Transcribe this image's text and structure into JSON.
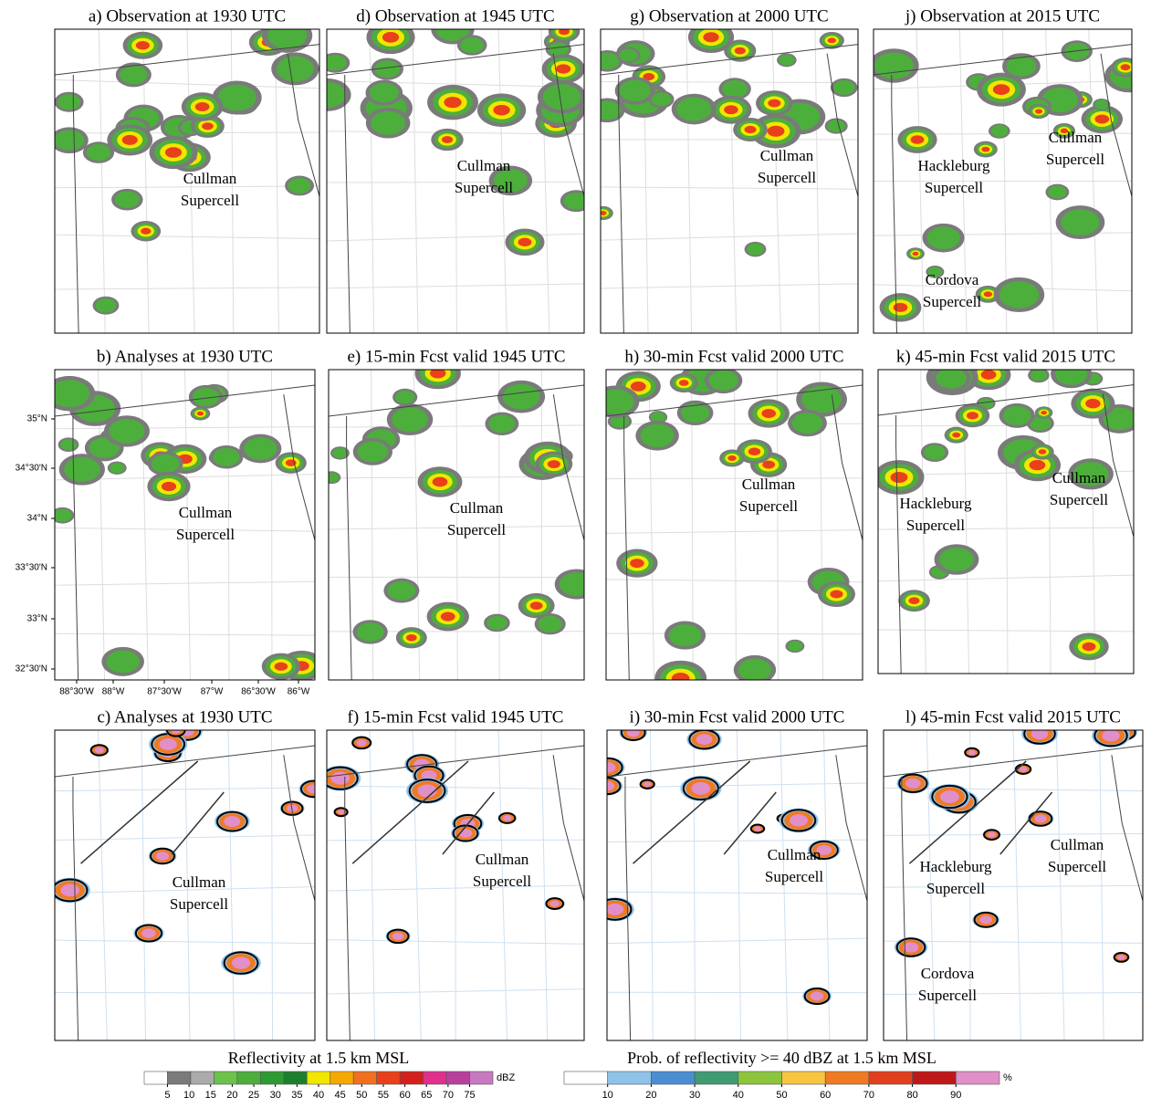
{
  "panels": [
    {
      "title": "a) Observation at 1930 UTC",
      "labels": [
        [
          "Cullman",
          "Supercell"
        ]
      ]
    },
    {
      "title": "d) Observation at 1945 UTC",
      "labels": [
        [
          "Cullman",
          "Supercell"
        ]
      ]
    },
    {
      "title": "g) Observation at 2000 UTC",
      "labels": [
        [
          "Cullman",
          "Supercell"
        ]
      ]
    },
    {
      "title": "j) Observation at 2015 UTC",
      "labels": [
        [
          "Cullman",
          "Supercell"
        ],
        [
          "Hackleburg",
          "Supercell"
        ],
        [
          "Cordova",
          "Supercell"
        ]
      ]
    },
    {
      "title": "b) Analyses at 1930 UTC",
      "labels": [
        [
          "Cullman",
          "Supercell"
        ]
      ]
    },
    {
      "title": "e) 15-min Fcst valid 1945 UTC",
      "labels": [
        [
          "Cullman",
          "Supercell"
        ]
      ]
    },
    {
      "title": "h) 30-min Fcst valid 2000 UTC",
      "labels": [
        [
          "Cullman",
          "Supercell"
        ]
      ]
    },
    {
      "title": "k) 45-min Fcst valid 2015 UTC",
      "labels": [
        [
          "Cullman",
          "Supercell"
        ],
        [
          "Hackleburg",
          "Supercell"
        ]
      ]
    },
    {
      "title": "c) Analyses at 1930 UTC",
      "labels": [
        [
          "Cullman",
          "Supercell"
        ]
      ]
    },
    {
      "title": "f) 15-min Fcst valid 1945 UTC",
      "labels": [
        [
          "Cullman",
          "Supercell"
        ]
      ]
    },
    {
      "title": "i) 30-min Fcst valid 2000 UTC",
      "labels": [
        [
          "Cullman",
          "Supercell"
        ]
      ]
    },
    {
      "title": "l) 45-min Fcst valid 2015 UTC",
      "labels": [
        [
          "Cullman",
          "Supercell"
        ],
        [
          "Hackleburg",
          "Supercell"
        ],
        [
          "Cordova",
          "Supercell"
        ]
      ]
    }
  ],
  "axes": {
    "lat": [
      "35°N",
      "34°30'N",
      "34°N",
      "33°30'N",
      "33°N",
      "32°30'N"
    ],
    "lon": [
      "88°30'W",
      "88°W",
      "87°30'W",
      "87°W",
      "86°30'W",
      "86°W"
    ]
  },
  "colorbars": [
    {
      "title": "Reflectivity at 1.5 km MSL",
      "unit": "dBZ",
      "ticks": [
        5,
        10,
        15,
        20,
        25,
        30,
        35,
        40,
        45,
        50,
        55,
        60,
        65,
        70,
        75
      ],
      "colors": [
        "#ffffff",
        "#7a7a7a",
        "#ababab",
        "#6cc24a",
        "#4caf3c",
        "#2e9a33",
        "#1d7f2e",
        "#f2e600",
        "#f5a800",
        "#f07020",
        "#e8401a",
        "#d4201c",
        "#e0308c",
        "#b8409c",
        "#c878c0"
      ]
    },
    {
      "title": "Prob. of reflectivity >= 40 dBZ at 1.5 km MSL",
      "unit": "%",
      "ticks": [
        10,
        20,
        30,
        40,
        50,
        60,
        70,
        80,
        90
      ],
      "colors": [
        "#ffffff",
        "#8ec3ea",
        "#4a8ed2",
        "#3f9b72",
        "#8cc43c",
        "#f7c540",
        "#f07a22",
        "#e0401e",
        "#bf1818",
        "#e08fc8"
      ]
    }
  ]
}
